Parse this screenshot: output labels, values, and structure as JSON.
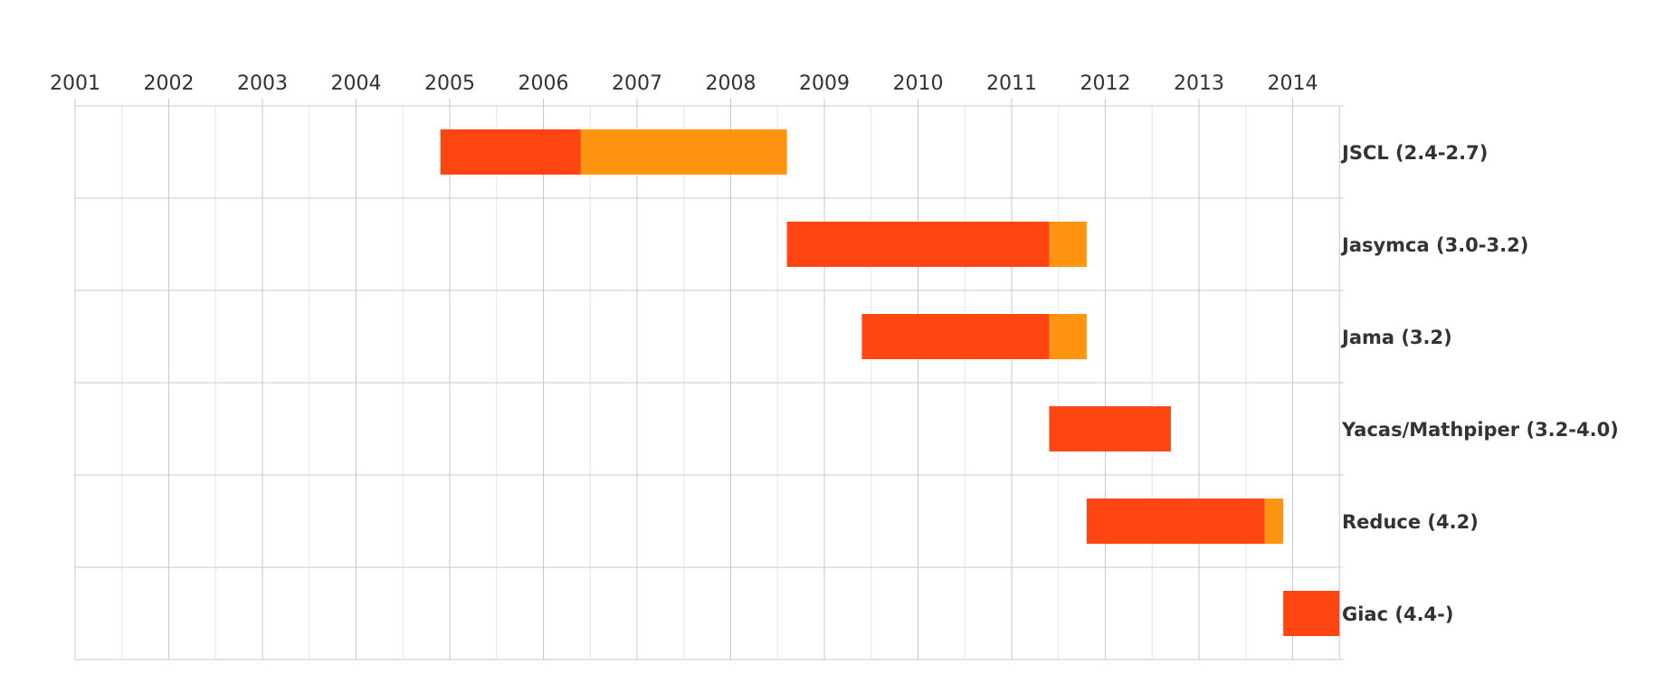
{
  "colors": {
    "primary": "#FF4511",
    "secondary": "#FF9410",
    "major_grid": "#c8c8c8",
    "minor_grid": "#e6e6e6",
    "text": "#333333"
  },
  "chart_data": {
    "type": "gantt",
    "title": "",
    "xlabel": "",
    "ylabel": "",
    "x_axis_position": "top",
    "xlim": [
      2001,
      2014.5
    ],
    "x_ticks": [
      "2001",
      "2002",
      "2003",
      "2004",
      "2005",
      "2006",
      "2007",
      "2008",
      "2009",
      "2010",
      "2011",
      "2012",
      "2013",
      "2014"
    ],
    "grid": true,
    "rows": [
      {
        "label": "JSCL (2.4-2.7)",
        "segments": [
          {
            "start": 2004.9,
            "end": 2006.4,
            "color": "#FF4511"
          },
          {
            "start": 2006.4,
            "end": 2008.6,
            "color": "#FF9410"
          }
        ]
      },
      {
        "label": "Jasymca (3.0-3.2)",
        "segments": [
          {
            "start": 2008.6,
            "end": 2011.4,
            "color": "#FF4511"
          },
          {
            "start": 2011.4,
            "end": 2011.8,
            "color": "#FF9410"
          }
        ]
      },
      {
        "label": "Jama (3.2)",
        "segments": [
          {
            "start": 2009.4,
            "end": 2011.4,
            "color": "#FF4511"
          },
          {
            "start": 2011.4,
            "end": 2011.8,
            "color": "#FF9410"
          }
        ]
      },
      {
        "label": "Yacas/Mathpiper (3.2-4.0)",
        "segments": [
          {
            "start": 2011.4,
            "end": 2012.7,
            "color": "#FF4511"
          }
        ]
      },
      {
        "label": "Reduce (4.2)",
        "segments": [
          {
            "start": 2011.8,
            "end": 2013.7,
            "color": "#FF4511"
          },
          {
            "start": 2013.7,
            "end": 2013.9,
            "color": "#FF9410"
          }
        ]
      },
      {
        "label": "Giac (4.4-)",
        "segments": [
          {
            "start": 2013.9,
            "end": 2014.5,
            "color": "#FF4511"
          }
        ]
      }
    ]
  }
}
